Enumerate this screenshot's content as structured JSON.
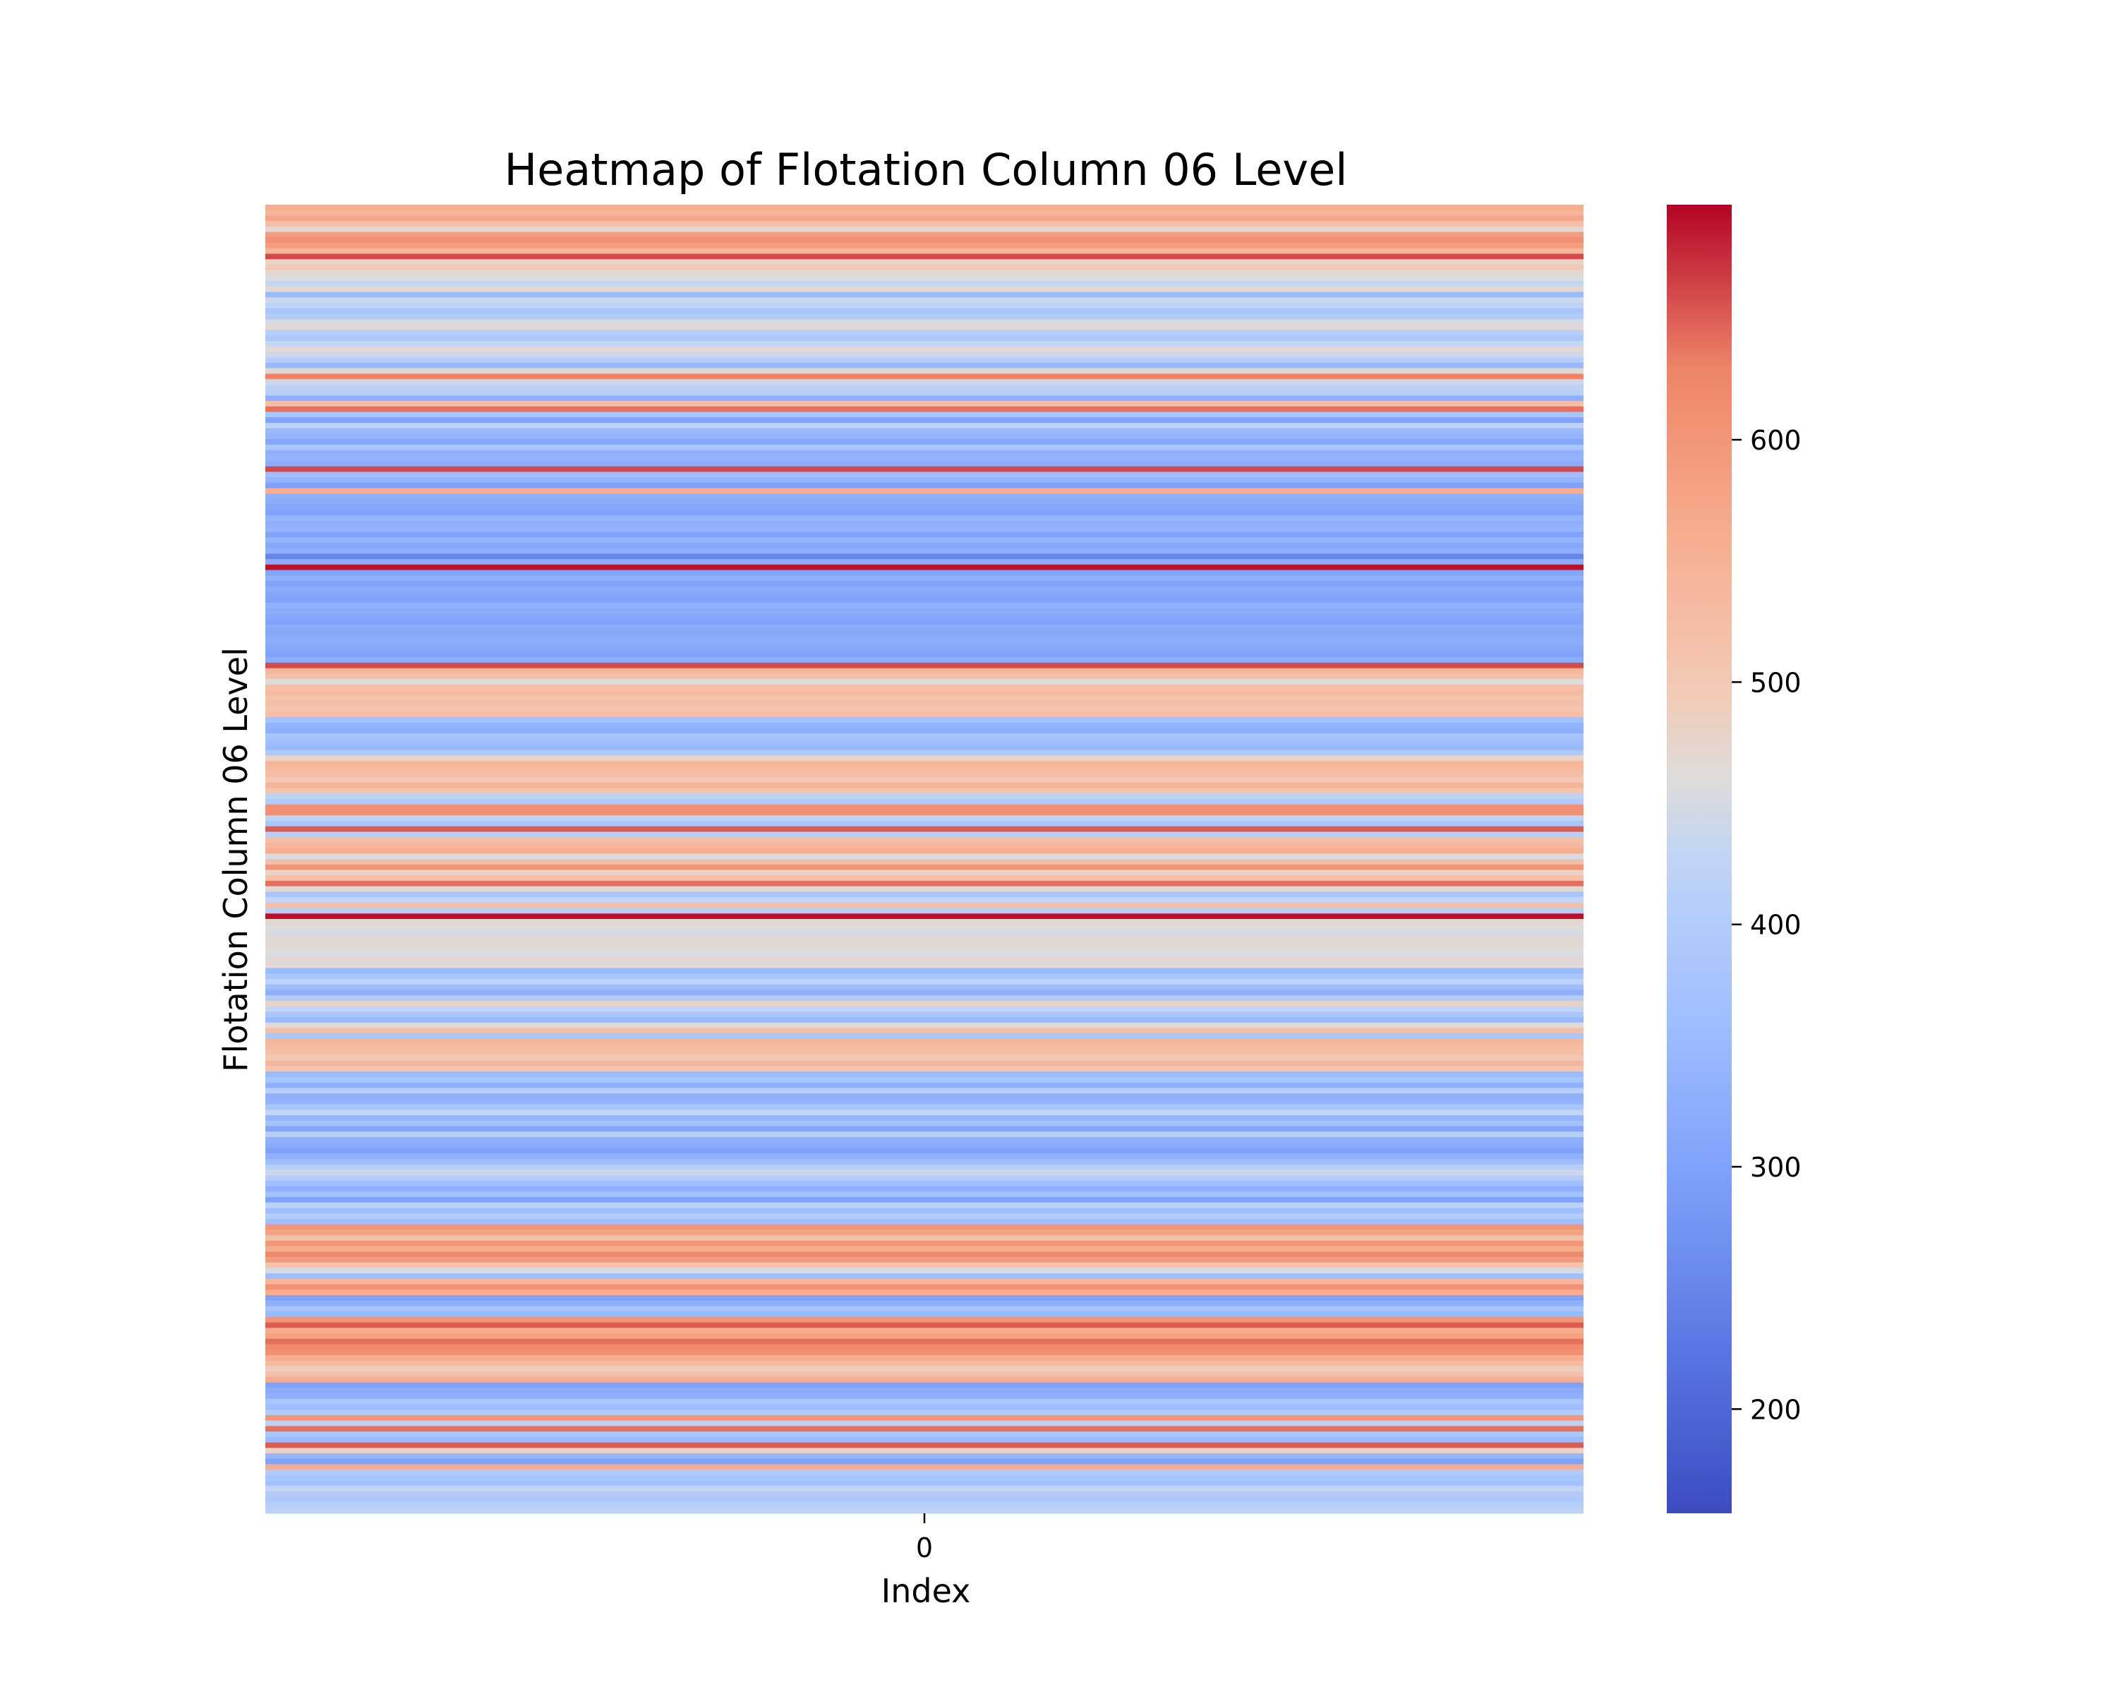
{
  "chart_data": {
    "type": "heatmap",
    "title": "Heatmap of Flotation Column 06 Level",
    "xlabel": "Index",
    "ylabel": "Flotation Column 06 Level",
    "x_categories": [
      "0"
    ],
    "colormap": "coolwarm",
    "colorbar": {
      "vmin": 157,
      "vmax": 697,
      "ticks": [
        200,
        300,
        400,
        500,
        600
      ],
      "colors": {
        "low": "#3b4cc0",
        "mid": "#dddddd",
        "high": "#b40426"
      }
    },
    "row_values": [
      560,
      540,
      575,
      520,
      470,
      590,
      610,
      585,
      540,
      660,
      480,
      500,
      470,
      455,
      430,
      470,
      350,
      440,
      420,
      380,
      400,
      450,
      465,
      410,
      390,
      430,
      470,
      440,
      405,
      350,
      470,
      630,
      440,
      420,
      410,
      330,
      520,
      640,
      380,
      300,
      420,
      350,
      340,
      310,
      380,
      330,
      340,
      320,
      660,
      360,
      340,
      300,
      560,
      330,
      320,
      310,
      300,
      340,
      330,
      340,
      300,
      340,
      310,
      330,
      250,
      320,
      690,
      310,
      330,
      300,
      320,
      310,
      300,
      330,
      320,
      310,
      300,
      320,
      310,
      320,
      320,
      310,
      300,
      320,
      660,
      540,
      520,
      460,
      520,
      530,
      515,
      520,
      510,
      525,
      370,
      340,
      330,
      380,
      360,
      350,
      390,
      480,
      540,
      530,
      520,
      500,
      545,
      510,
      420,
      400,
      610,
      610,
      420,
      380,
      650,
      410,
      520,
      540,
      560,
      450,
      520,
      600,
      480,
      520,
      640,
      470,
      380,
      430,
      520,
      410,
      690,
      470,
      460,
      450,
      465,
      470,
      460,
      455,
      470,
      465,
      350,
      380,
      420,
      360,
      330,
      400,
      480,
      430,
      380,
      350,
      470,
      520,
      380,
      540,
      530,
      520,
      500,
      540,
      510,
      350,
      380,
      330,
      410,
      330,
      340,
      380,
      430,
      340,
      370,
      310,
      410,
      330,
      320,
      300,
      330,
      360,
      410,
      440,
      400,
      360,
      330,
      370,
      300,
      420,
      360,
      400,
      360,
      600,
      580,
      520,
      600,
      560,
      620,
      590,
      510,
      450,
      360,
      540,
      610,
      560,
      300,
      330,
      380,
      350,
      600,
      650,
      560,
      580,
      640,
      620,
      610,
      560,
      530,
      490,
      520,
      560,
      300,
      320,
      330,
      380,
      360,
      400,
      600,
      420,
      640,
      380,
      350,
      650,
      480,
      340,
      300,
      560,
      400,
      380,
      370,
      430,
      400,
      390,
      410,
      420
    ]
  }
}
